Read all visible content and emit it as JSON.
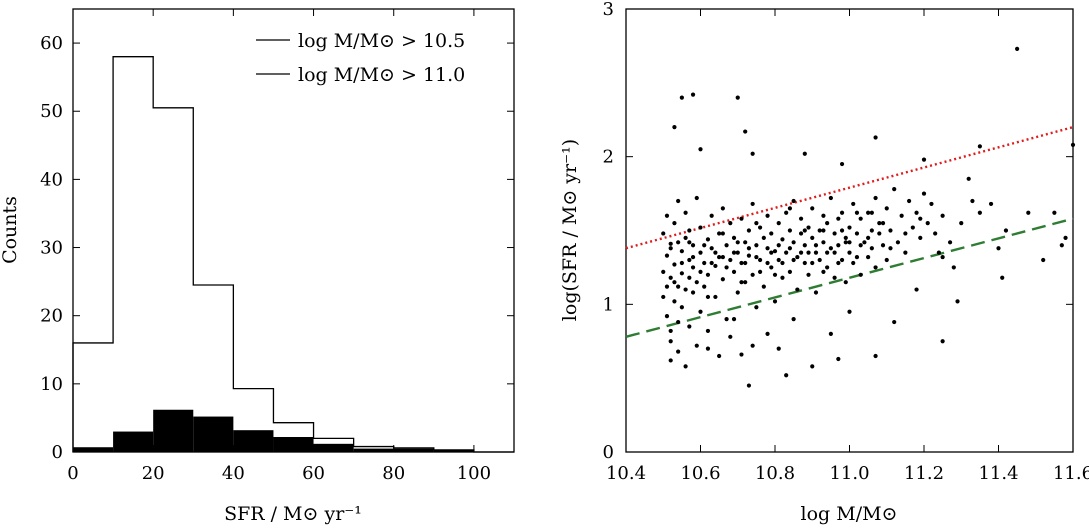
{
  "chart_data": [
    {
      "type": "histogram",
      "xlabel": "SFR / M⊙ yr⁻¹",
      "ylabel": "Counts",
      "xlim": [
        0,
        110
      ],
      "ylim": [
        0,
        65
      ],
      "xticks": [
        0,
        20,
        40,
        60,
        80,
        100
      ],
      "xtick_labels": [
        "0",
        "20",
        "40",
        "60",
        "80",
        "100"
      ],
      "yticks": [
        0,
        10,
        20,
        30,
        40,
        50,
        60
      ],
      "ytick_labels": [
        "0",
        "10",
        "20",
        "30",
        "40",
        "50",
        "60"
      ],
      "bin_edges": [
        0,
        10,
        20,
        30,
        40,
        50,
        60,
        70,
        80,
        90,
        100,
        110
      ],
      "legend_position": "top-right",
      "series": [
        {
          "name": "log M/M⊙ > 10.5",
          "style": "step-outline",
          "color": "#000000",
          "counts": [
            16,
            58,
            50.5,
            24.5,
            9.3,
            4.3,
            2,
            0.8,
            0.6,
            0.3,
            0
          ]
        },
        {
          "name": "log M/M⊙ > 11.0",
          "style": "filled",
          "color": "#000000",
          "counts": [
            0.7,
            3,
            6.2,
            5.2,
            3.2,
            2.2,
            1.2,
            0.5,
            0.5,
            0.3,
            0
          ]
        }
      ]
    },
    {
      "type": "scatter",
      "xlabel": "log M/M⊙",
      "ylabel": "log(SFR / M⊙ yr⁻¹)",
      "xlim": [
        10.4,
        11.6
      ],
      "ylim": [
        0,
        3
      ],
      "xticks": [
        10.4,
        10.6,
        10.8,
        11.0,
        11.2,
        11.4,
        11.6
      ],
      "xtick_labels": [
        "10.4",
        "10.6",
        "10.8",
        "11.0",
        "11.2",
        "11.4",
        "11.6"
      ],
      "yticks": [
        0,
        1,
        2,
        3
      ],
      "ytick_labels": [
        "0",
        "1",
        "2",
        "3"
      ],
      "points": [
        [
          10.5,
          1.22
        ],
        [
          10.5,
          1.05
        ],
        [
          10.5,
          1.48
        ],
        [
          10.51,
          1.33
        ],
        [
          10.51,
          0.92
        ],
        [
          10.51,
          1.6
        ],
        [
          10.52,
          1.18
        ],
        [
          10.52,
          0.75
        ],
        [
          10.52,
          1.41
        ],
        [
          10.53,
          1.27
        ],
        [
          10.53,
          1.02
        ],
        [
          10.53,
          1.55
        ],
        [
          10.54,
          1.12
        ],
        [
          10.54,
          0.88
        ],
        [
          10.54,
          1.7
        ],
        [
          10.55,
          1.36
        ],
        [
          10.55,
          1.21
        ],
        [
          10.55,
          0.98
        ],
        [
          10.56,
          1.45
        ],
        [
          10.56,
          1.1
        ],
        [
          10.56,
          1.62
        ],
        [
          10.57,
          1.3
        ],
        [
          10.57,
          0.85
        ],
        [
          10.57,
          1.5
        ],
        [
          10.58,
          1.25
        ],
        [
          10.58,
          1.08
        ],
        [
          10.58,
          1.4
        ],
        [
          10.59,
          1.15
        ],
        [
          10.59,
          1.72
        ],
        [
          10.6,
          1.35
        ],
        [
          10.6,
          0.95
        ],
        [
          10.6,
          1.52
        ],
        [
          10.61,
          1.28
        ],
        [
          10.61,
          1.12
        ],
        [
          10.62,
          1.44
        ],
        [
          10.62,
          1.2
        ],
        [
          10.62,
          0.82
        ],
        [
          10.63,
          1.38
        ],
        [
          10.63,
          1.6
        ],
        [
          10.64,
          1.26
        ],
        [
          10.64,
          1.05
        ],
        [
          10.65,
          1.48
        ],
        [
          10.65,
          1.32
        ],
        [
          10.66,
          1.17
        ],
        [
          10.66,
          1.65
        ],
        [
          10.67,
          1.4
        ],
        [
          10.67,
          0.9
        ],
        [
          10.68,
          1.3
        ],
        [
          10.68,
          1.55
        ],
        [
          10.69,
          1.22
        ],
        [
          10.69,
          1.45
        ],
        [
          10.7,
          1.35
        ],
        [
          10.7,
          1.08
        ],
        [
          10.71,
          1.58
        ],
        [
          10.71,
          1.28
        ],
        [
          10.72,
          1.42
        ],
        [
          10.72,
          1.15
        ],
        [
          10.73,
          1.5
        ],
        [
          10.73,
          1.33
        ],
        [
          10.74,
          1.68
        ],
        [
          10.74,
          1.2
        ],
        [
          10.75,
          1.4
        ],
        [
          10.75,
          0.98
        ],
        [
          10.76,
          1.52
        ],
        [
          10.76,
          1.3
        ],
        [
          10.77,
          1.45
        ],
        [
          10.77,
          1.12
        ],
        [
          10.78,
          1.38
        ],
        [
          10.78,
          1.6
        ],
        [
          10.79,
          1.25
        ],
        [
          10.79,
          1.48
        ],
        [
          10.8,
          1.36
        ],
        [
          10.8,
          1.02
        ],
        [
          10.81,
          1.55
        ],
        [
          10.81,
          1.3
        ],
        [
          10.82,
          1.44
        ],
        [
          10.82,
          1.18
        ],
        [
          10.83,
          1.62
        ],
        [
          10.83,
          1.35
        ],
        [
          10.84,
          1.5
        ],
        [
          10.84,
          1.22
        ],
        [
          10.85,
          1.42
        ],
        [
          10.85,
          1.7
        ],
        [
          10.86,
          1.32
        ],
        [
          10.86,
          1.1
        ],
        [
          10.87,
          1.48
        ],
        [
          10.87,
          1.58
        ],
        [
          10.88,
          1.28
        ],
        [
          10.88,
          1.4
        ],
        [
          10.89,
          1.52
        ],
        [
          10.89,
          1.2
        ],
        [
          10.9,
          1.45
        ],
        [
          10.9,
          1.65
        ],
        [
          10.91,
          1.35
        ],
        [
          10.91,
          1.08
        ],
        [
          10.92,
          1.5
        ],
        [
          10.92,
          1.3
        ],
        [
          10.93,
          1.6
        ],
        [
          10.93,
          1.42
        ],
        [
          10.94,
          1.25
        ],
        [
          10.94,
          1.55
        ],
        [
          10.95,
          1.38
        ],
        [
          10.95,
          1.72
        ],
        [
          10.96,
          1.48
        ],
        [
          10.96,
          1.18
        ],
        [
          10.97,
          1.58
        ],
        [
          10.97,
          1.4
        ],
        [
          10.98,
          1.3
        ],
        [
          10.98,
          1.62
        ],
        [
          10.99,
          1.45
        ],
        [
          10.99,
          1.15
        ],
        [
          11.0,
          1.52
        ],
        [
          11.0,
          1.35
        ],
        [
          11.01,
          1.68
        ],
        [
          11.01,
          1.28
        ],
        [
          11.02,
          1.48
        ],
        [
          11.03,
          1.58
        ],
        [
          11.03,
          1.2
        ],
        [
          11.04,
          1.42
        ],
        [
          11.05,
          1.62
        ],
        [
          11.05,
          1.32
        ],
        [
          11.06,
          1.5
        ],
        [
          11.07,
          1.72
        ],
        [
          11.07,
          1.25
        ],
        [
          11.08,
          1.55
        ],
        [
          11.09,
          1.4
        ],
        [
          11.1,
          1.65
        ],
        [
          11.1,
          1.3
        ],
        [
          11.11,
          1.5
        ],
        [
          11.12,
          1.78
        ],
        [
          11.13,
          1.42
        ],
        [
          11.14,
          1.6
        ],
        [
          11.15,
          1.35
        ],
        [
          11.16,
          1.7
        ],
        [
          11.17,
          1.52
        ],
        [
          11.18,
          1.62
        ],
        [
          11.19,
          1.45
        ],
        [
          11.2,
          1.75
        ],
        [
          11.21,
          1.55
        ],
        [
          11.22,
          1.68
        ],
        [
          10.52,
          1.38
        ],
        [
          10.55,
          1.28
        ],
        [
          10.58,
          1.32
        ],
        [
          10.61,
          1.4
        ],
        [
          10.64,
          1.35
        ],
        [
          10.67,
          1.25
        ],
        [
          10.7,
          1.42
        ],
        [
          10.73,
          1.38
        ],
        [
          10.76,
          1.22
        ],
        [
          10.79,
          1.35
        ],
        [
          10.82,
          1.28
        ],
        [
          10.85,
          1.3
        ],
        [
          10.88,
          1.5
        ],
        [
          10.91,
          1.4
        ],
        [
          10.94,
          1.35
        ],
        [
          10.97,
          1.28
        ],
        [
          11.0,
          1.42
        ],
        [
          11.03,
          1.4
        ],
        [
          11.06,
          1.38
        ],
        [
          11.09,
          1.55
        ],
        [
          10.53,
          1.15
        ],
        [
          10.57,
          1.42
        ],
        [
          10.62,
          1.05
        ],
        [
          10.66,
          1.48
        ],
        [
          10.71,
          1.15
        ],
        [
          10.75,
          1.55
        ],
        [
          10.8,
          1.2
        ],
        [
          10.84,
          1.65
        ],
        [
          10.89,
          1.35
        ],
        [
          10.93,
          1.22
        ],
        [
          10.98,
          1.5
        ],
        [
          11.02,
          1.32
        ],
        [
          11.06,
          1.62
        ],
        [
          11.11,
          1.38
        ],
        [
          11.15,
          1.48
        ],
        [
          11.19,
          1.58
        ],
        [
          11.23,
          1.48
        ],
        [
          11.24,
          1.35
        ],
        [
          11.25,
          1.6
        ],
        [
          11.27,
          1.42
        ],
        [
          10.51,
          1.12
        ],
        [
          10.54,
          1.42
        ],
        [
          10.57,
          1.18
        ],
        [
          10.6,
          1.22
        ],
        [
          10.63,
          1.28
        ],
        [
          10.66,
          1.32
        ],
        [
          10.69,
          1.35
        ],
        [
          10.72,
          1.28
        ],
        [
          10.75,
          1.32
        ],
        [
          10.78,
          1.28
        ],
        [
          10.81,
          1.4
        ],
        [
          10.84,
          1.38
        ],
        [
          10.87,
          1.35
        ],
        [
          10.9,
          1.28
        ],
        [
          10.93,
          1.5
        ],
        [
          10.96,
          1.35
        ],
        [
          10.99,
          1.42
        ],
        [
          11.02,
          1.62
        ],
        [
          11.05,
          1.45
        ],
        [
          11.08,
          1.48
        ],
        [
          10.52,
          0.62
        ],
        [
          10.54,
          0.68
        ],
        [
          10.56,
          0.58
        ],
        [
          10.59,
          0.72
        ],
        [
          10.62,
          0.7
        ],
        [
          10.65,
          0.65
        ],
        [
          10.68,
          0.78
        ],
        [
          10.71,
          0.66
        ],
        [
          10.74,
          0.72
        ],
        [
          10.78,
          0.8
        ],
        [
          10.55,
          2.4
        ],
        [
          10.58,
          2.42
        ],
        [
          10.7,
          2.4
        ],
        [
          10.53,
          2.2
        ],
        [
          10.6,
          2.05
        ],
        [
          10.72,
          2.17
        ],
        [
          10.74,
          2.02
        ],
        [
          10.88,
          2.02
        ],
        [
          10.98,
          1.95
        ],
        [
          11.07,
          2.13
        ],
        [
          11.2,
          1.98
        ],
        [
          11.35,
          2.07
        ],
        [
          11.45,
          2.73
        ],
        [
          11.6,
          2.08
        ],
        [
          11.32,
          1.85
        ],
        [
          11.38,
          1.68
        ],
        [
          11.3,
          1.55
        ],
        [
          11.42,
          1.5
        ],
        [
          11.48,
          1.62
        ],
        [
          11.55,
          1.62
        ],
        [
          11.58,
          1.45
        ],
        [
          11.57,
          1.4
        ],
        [
          11.52,
          1.3
        ],
        [
          11.4,
          1.38
        ],
        [
          11.28,
          1.25
        ],
        [
          11.25,
          1.32
        ],
        [
          11.33,
          1.7
        ],
        [
          11.35,
          1.62
        ],
        [
          10.73,
          0.45
        ],
        [
          10.83,
          0.52
        ],
        [
          10.9,
          0.58
        ],
        [
          10.97,
          0.63
        ],
        [
          11.07,
          0.65
        ],
        [
          11.25,
          0.75
        ],
        [
          11.29,
          1.02
        ],
        [
          11.41,
          1.18
        ],
        [
          11.18,
          1.1
        ],
        [
          11.12,
          0.88
        ],
        [
          11.0,
          0.95
        ],
        [
          10.95,
          0.8
        ],
        [
          10.85,
          0.9
        ],
        [
          10.81,
          0.7
        ],
        [
          10.69,
          0.9
        ],
        [
          10.52,
          0.82
        ]
      ],
      "reference_lines": [
        {
          "style": "dotted",
          "color": "#e21c1c",
          "x": [
            10.4,
            11.6
          ],
          "y": [
            1.38,
            2.2
          ]
        },
        {
          "style": "dashed",
          "color": "#2e7d32",
          "x": [
            10.4,
            11.6
          ],
          "y": [
            0.78,
            1.58
          ]
        }
      ]
    }
  ]
}
